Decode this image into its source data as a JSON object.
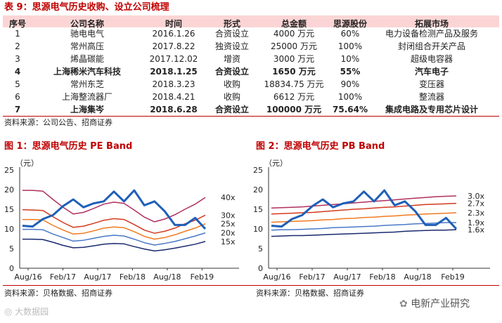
{
  "table": {
    "title": "表 9：思源电气历史收购、设立公司梳理",
    "headers": [
      "序号",
      "公司名称",
      "时间",
      "形式",
      "总金额",
      "思源股份",
      "拓展市场"
    ],
    "rows": [
      {
        "no": "1",
        "company": "驰电电气",
        "date": "2016.1.26",
        "form": "合资设立",
        "amount": "4000 万元",
        "share": "60%",
        "market": "电力设备检测产品及服务",
        "bold": false
      },
      {
        "no": "2",
        "company": "常州高压",
        "date": "2017.8.22",
        "form": "独资设立",
        "amount": "25000 万元",
        "share": "100%",
        "market": "封闭组合开关产品",
        "bold": false
      },
      {
        "no": "3",
        "company": "烯晶碳能",
        "date": "2017.12.02",
        "form": "增资",
        "amount": "3000 万元",
        "share": "10%",
        "market": "超级电容器",
        "bold": false
      },
      {
        "no": "4",
        "company": "上海稀米汽车科技",
        "date": "2018.1.25",
        "form": "合资设立",
        "amount": "1650 万元",
        "share": "55%",
        "market": "汽车电子",
        "bold": true
      },
      {
        "no": "5",
        "company": "常州东芝",
        "date": "2018.3.23",
        "form": "收购",
        "amount": "18834.75 万元",
        "share": "90%",
        "market": "变压器",
        "bold": false
      },
      {
        "no": "6",
        "company": "上海整流器厂",
        "date": "2018.4.21",
        "form": "收购",
        "amount": "6612 万元",
        "share": "100%",
        "market": "整流器",
        "bold": false
      },
      {
        "no": "7",
        "company": "上海集岑",
        "date": "2018.6.28",
        "form": "合资设立",
        "amount": "100000 万元",
        "share": "75.64%",
        "market": "集成电路及专用芯片设计",
        "bold": true
      }
    ],
    "source": "资料来源：公司公告、招商证券"
  },
  "chart_data": [
    {
      "type": "line",
      "title": "图 1：思源电气历史 PE Band",
      "ylabel": "（元）",
      "ylim": [
        0,
        25
      ],
      "yticks": [
        "0",
        "5",
        "10",
        "15",
        "20",
        "25"
      ],
      "xticks": [
        "Aug/16",
        "Feb/17",
        "Aug/17",
        "Feb/18",
        "Aug/18",
        "Feb19"
      ],
      "band_labels": [
        "40x",
        "30x",
        "25x",
        "20x",
        "15x"
      ],
      "series": [
        {
          "name": "40x",
          "color": "#b03060",
          "values": [
            19.8,
            19.8,
            19.6,
            17.5,
            15.5,
            13.8,
            14.2,
            15.2,
            16.3,
            16.8,
            16.5,
            14.8,
            13.0,
            11.8,
            12.5,
            13.6,
            15.0,
            16.3,
            18.0
          ]
        },
        {
          "name": "30x",
          "color": "#d23b1e",
          "values": [
            14.9,
            14.8,
            14.7,
            13.1,
            11.6,
            10.4,
            10.7,
            11.4,
            12.2,
            12.6,
            12.4,
            11.1,
            9.7,
            8.9,
            9.4,
            10.2,
            11.3,
            12.2,
            13.5
          ]
        },
        {
          "name": "25x",
          "color": "#f07a20",
          "values": [
            12.4,
            12.4,
            12.3,
            10.9,
            9.7,
            8.7,
            8.9,
            9.5,
            10.2,
            10.5,
            10.3,
            9.3,
            8.1,
            7.4,
            7.8,
            8.5,
            9.4,
            10.2,
            11.3
          ]
        },
        {
          "name": "20x",
          "color": "#4a78c8",
          "values": [
            9.9,
            9.9,
            9.8,
            8.7,
            7.8,
            6.9,
            7.1,
            7.6,
            8.1,
            8.4,
            8.2,
            7.4,
            6.5,
            5.9,
            6.3,
            6.8,
            7.5,
            8.2,
            9.0
          ]
        },
        {
          "name": "15x",
          "color": "#1a2a6e",
          "values": [
            7.4,
            7.4,
            7.3,
            6.6,
            5.8,
            5.2,
            5.3,
            5.7,
            6.1,
            6.3,
            6.2,
            5.5,
            4.9,
            4.4,
            4.7,
            5.1,
            5.6,
            6.1,
            6.8
          ]
        },
        {
          "name": "price",
          "color": "#1f5fb8",
          "values": [
            10.8,
            10.6,
            12.5,
            13.5,
            15.8,
            17.5,
            15.5,
            16.5,
            17.0,
            19.5,
            17.0,
            19.8,
            16.0,
            17.0,
            14.5,
            11.0,
            11.0,
            12.8,
            10.0
          ]
        }
      ]
    },
    {
      "type": "line",
      "title": "图 2：思源电气历史 PB Band",
      "ylabel": "（元）",
      "ylim": [
        0,
        25
      ],
      "yticks": [
        "0",
        "5",
        "10",
        "15",
        "20",
        "25"
      ],
      "xticks": [
        "Aug/16",
        "Feb/17",
        "Aug/17",
        "Feb/18",
        "Aug/18",
        "Feb19"
      ],
      "band_labels": [
        "3.0x",
        "2.7x",
        "2.3x",
        "1.9x",
        "1.6x"
      ],
      "series": [
        {
          "name": "3.0x",
          "color": "#b03060",
          "values": [
            15.3,
            15.4,
            15.5,
            15.6,
            15.8,
            16.0,
            16.2,
            16.4,
            16.6,
            16.8,
            17.0,
            17.2,
            17.4,
            17.6,
            17.8,
            18.0,
            18.2,
            18.3,
            18.4
          ]
        },
        {
          "name": "2.7x",
          "color": "#d23b1e",
          "values": [
            13.8,
            13.9,
            14.0,
            14.1,
            14.2,
            14.4,
            14.6,
            14.8,
            15.0,
            15.1,
            15.3,
            15.5,
            15.6,
            15.8,
            16.0,
            16.2,
            16.3,
            16.4,
            16.5
          ]
        },
        {
          "name": "2.3x",
          "color": "#f07a20",
          "values": [
            11.7,
            11.8,
            11.9,
            12.0,
            12.1,
            12.3,
            12.4,
            12.6,
            12.7,
            12.9,
            13.0,
            13.2,
            13.3,
            13.5,
            13.6,
            13.8,
            13.9,
            14.0,
            14.1
          ]
        },
        {
          "name": "1.9x",
          "color": "#4a78c8",
          "values": [
            9.7,
            9.8,
            9.8,
            9.9,
            10.0,
            10.1,
            10.3,
            10.4,
            10.5,
            10.6,
            10.7,
            10.9,
            11.0,
            11.1,
            11.3,
            11.4,
            11.5,
            11.6,
            11.6
          ]
        },
        {
          "name": "1.6x",
          "color": "#1a2a6e",
          "values": [
            8.1,
            8.2,
            8.3,
            8.3,
            8.4,
            8.5,
            8.6,
            8.7,
            8.8,
            8.9,
            9.0,
            9.1,
            9.2,
            9.4,
            9.5,
            9.6,
            9.7,
            9.7,
            9.8
          ]
        },
        {
          "name": "price",
          "color": "#1f5fb8",
          "values": [
            10.8,
            10.6,
            12.5,
            13.5,
            15.8,
            17.5,
            15.5,
            16.5,
            17.0,
            19.5,
            17.0,
            19.8,
            16.0,
            17.0,
            14.5,
            11.0,
            11.0,
            12.8,
            10.0
          ]
        }
      ]
    }
  ],
  "source_bottom": "资料来源：贝格数据、招商证券",
  "watermark_left": "大数据园",
  "watermark_right": "电新产业研究"
}
